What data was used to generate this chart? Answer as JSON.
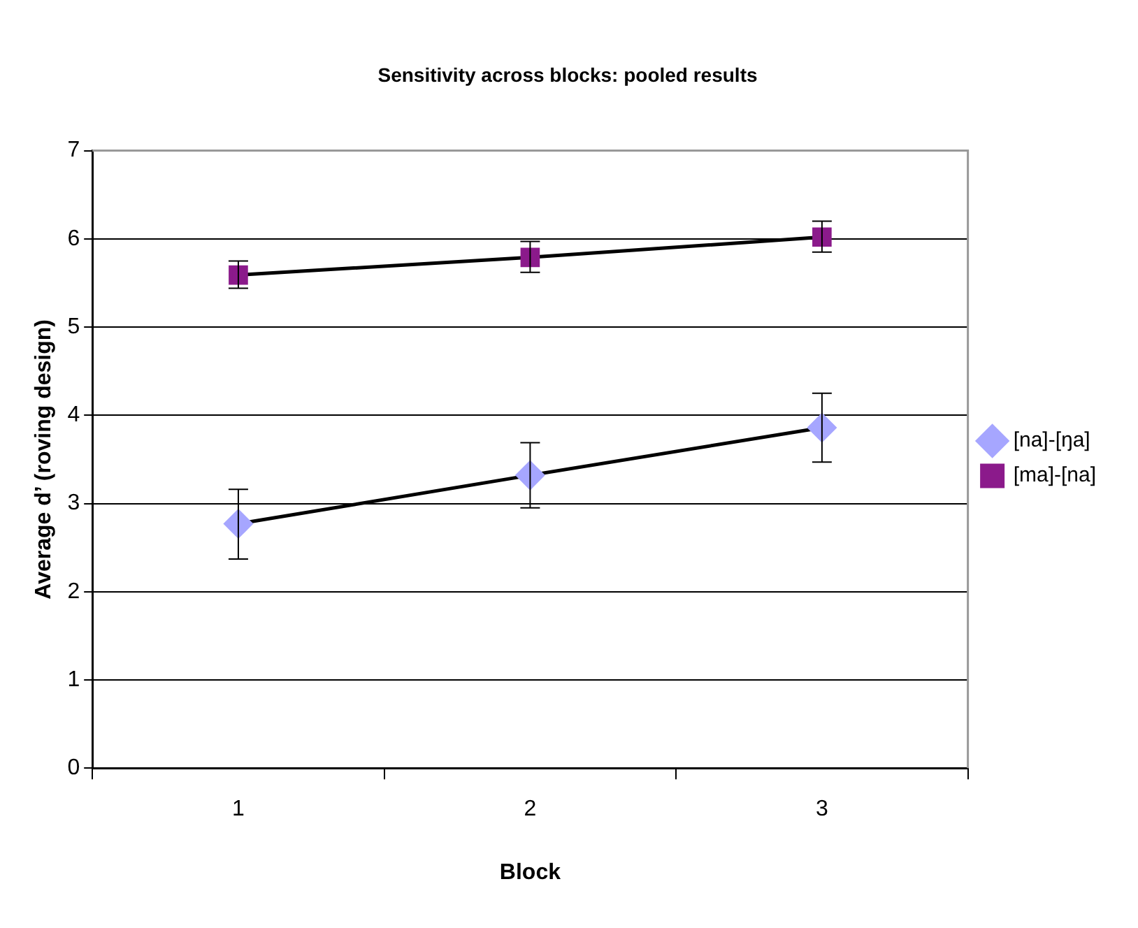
{
  "chart_data": {
    "type": "line",
    "title": "Sensitivity across blocks: pooled results",
    "xlabel": "Block",
    "ylabel": "Average d’ (roving design)",
    "categories": [
      "1",
      "2",
      "3"
    ],
    "series": [
      {
        "name": "[na]-[ŋa]",
        "color": "#a6a6ff",
        "marker": "diamond",
        "values": [
          2.77,
          3.32,
          3.86
        ],
        "errors": [
          [
            2.37,
            3.16
          ],
          [
            2.95,
            3.69
          ],
          [
            3.47,
            4.25
          ]
        ]
      },
      {
        "name": "[ma]-[na]",
        "color": "#8b1a8b",
        "marker": "square",
        "values": [
          5.59,
          5.79,
          6.02
        ],
        "errors": [
          [
            5.44,
            5.75
          ],
          [
            5.62,
            5.97
          ],
          [
            5.85,
            6.2
          ]
        ]
      }
    ],
    "ylim": [
      0,
      7
    ],
    "yticks": [
      0,
      1,
      2,
      3,
      4,
      5,
      6,
      7
    ],
    "grid": "y",
    "legend": "right",
    "line_style": "solid"
  }
}
